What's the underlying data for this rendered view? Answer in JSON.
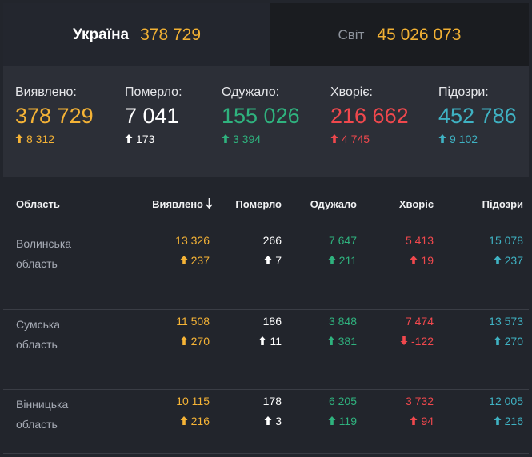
{
  "tabs": [
    {
      "name": "Україна",
      "value": "378 729",
      "active": true
    },
    {
      "name": "Світ",
      "value": "45 026 073",
      "active": false
    }
  ],
  "summary": [
    {
      "label": "Виявлено:",
      "value": "378 729",
      "delta": "8 312",
      "color": "#f5b336",
      "arrow": "up"
    },
    {
      "label": "Померло:",
      "value": "7 041",
      "delta": "173",
      "color": "#ffffff",
      "arrow": "up"
    },
    {
      "label": "Одужало:",
      "value": "155 026",
      "delta": "3 394",
      "color": "#2fb27e",
      "arrow": "up"
    },
    {
      "label": "Хворіє:",
      "value": "216 662",
      "delta": "4 745",
      "color": "#f0484d",
      "arrow": "up"
    },
    {
      "label": "Підозри:",
      "value": "452 786",
      "delta": "9 102",
      "color": "#3fb2c3",
      "arrow": "up"
    }
  ],
  "table": {
    "headers": {
      "region": "Область",
      "confirmed": "Виявлено",
      "deaths": "Померло",
      "recovered": "Одужало",
      "sick": "Хворіє",
      "suspected": "Підозри",
      "sort_icon": "arrow-down-icon"
    },
    "rows": [
      {
        "region_line1": "Волинська",
        "region_line2": "область",
        "confirmed": "13 326",
        "confirmed_delta": "237",
        "confirmed_arrow": "up",
        "deaths": "266",
        "deaths_delta": "7",
        "deaths_arrow": "up",
        "recovered": "7 647",
        "recovered_delta": "211",
        "recovered_arrow": "up",
        "sick": "5 413",
        "sick_delta": "19",
        "sick_arrow": "up",
        "suspected": "15 078",
        "suspected_delta": "237",
        "suspected_arrow": "up"
      },
      {
        "region_line1": "Сумська",
        "region_line2": "область",
        "confirmed": "11 508",
        "confirmed_delta": "270",
        "confirmed_arrow": "up",
        "deaths": "186",
        "deaths_delta": "11",
        "deaths_arrow": "up",
        "recovered": "3 848",
        "recovered_delta": "381",
        "recovered_arrow": "up",
        "sick": "7 474",
        "sick_delta": "-122",
        "sick_arrow": "down",
        "suspected": "13 573",
        "suspected_delta": "270",
        "suspected_arrow": "up"
      },
      {
        "region_line1": "Вінницька",
        "region_line2": "область",
        "confirmed": "10 115",
        "confirmed_delta": "216",
        "confirmed_arrow": "up",
        "deaths": "178",
        "deaths_delta": "3",
        "deaths_arrow": "up",
        "recovered": "6 205",
        "recovered_delta": "119",
        "recovered_arrow": "up",
        "sick": "3 732",
        "sick_delta": "94",
        "sick_arrow": "up",
        "suspected": "12 005",
        "suspected_delta": "216",
        "suspected_arrow": "up"
      }
    ]
  },
  "colors": {
    "confirmed": "#f5b336",
    "deaths": "#ffffff",
    "recovered": "#2fb27e",
    "sick": "#f0484d",
    "suspected": "#3fb2c3"
  }
}
